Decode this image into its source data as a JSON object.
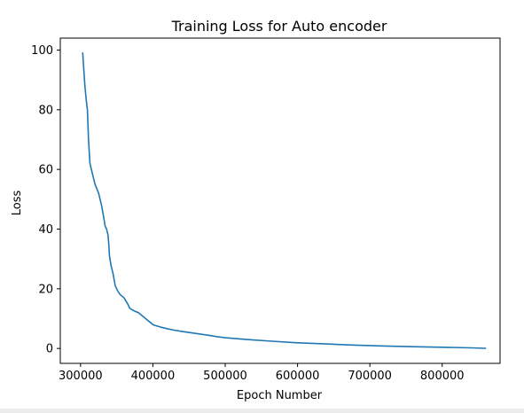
{
  "chart_data": {
    "type": "line",
    "title": "Training Loss for Auto encoder",
    "xlabel": "Epoch Number",
    "ylabel": "Loss",
    "xlim": [
      272000,
      880000
    ],
    "ylim": [
      -5,
      104
    ],
    "xticks": [
      300000,
      400000,
      500000,
      600000,
      700000,
      800000
    ],
    "xtick_labels": [
      "300000",
      "400000",
      "500000",
      "600000",
      "700000",
      "800000"
    ],
    "yticks": [
      0,
      20,
      40,
      60,
      80,
      100
    ],
    "ytick_labels": [
      "0",
      "20",
      "40",
      "60",
      "80",
      "100"
    ],
    "grid": false,
    "legend": "none",
    "series": [
      {
        "color": "#1f77b4",
        "x": [
          303000,
          306000,
          308000,
          309500,
          311000,
          313000,
          316000,
          320000,
          325000,
          329000,
          332000,
          334000,
          336000,
          338000,
          339000,
          340000,
          342000,
          345000,
          348000,
          352000,
          355000,
          360000,
          365000,
          368000,
          371000,
          375000,
          380000,
          385000,
          390000,
          395000,
          400000,
          403000,
          406000,
          410000,
          420000,
          430000,
          440000,
          460000,
          480000,
          490000,
          500000,
          530000,
          560000,
          600000,
          640000,
          680000,
          720000,
          760000,
          800000,
          840000,
          860000
        ],
        "y": [
          99,
          88,
          83,
          80,
          70,
          62,
          59,
          55,
          52,
          48,
          44,
          41,
          40,
          38,
          35,
          31,
          28,
          25,
          21,
          19,
          18,
          17,
          15,
          13.5,
          13,
          12.5,
          12,
          11,
          10,
          9,
          8,
          7.7,
          7.5,
          7.2,
          6.6,
          6.1,
          5.7,
          5,
          4.3,
          3.9,
          3.6,
          3,
          2.5,
          1.9,
          1.5,
          1.1,
          0.8,
          0.6,
          0.4,
          0.2,
          0.05
        ]
      }
    ]
  }
}
